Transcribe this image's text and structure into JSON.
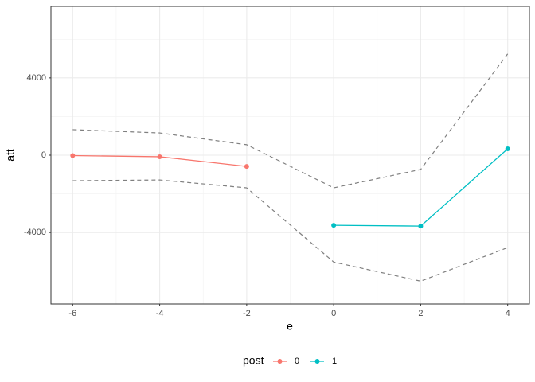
{
  "chart_data": {
    "type": "line",
    "x_label": "e",
    "y_label": "att",
    "x": [
      -6,
      -4,
      -2,
      0,
      2,
      4
    ],
    "series": [
      {
        "name": "0",
        "color": "#f8766d",
        "x": [
          -6,
          -4,
          -2
        ],
        "values": [
          -20,
          -80,
          -580
        ]
      },
      {
        "name": "1",
        "color": "#00bfc4",
        "x": [
          0,
          2,
          4
        ],
        "values": [
          -3630,
          -3670,
          330
        ]
      }
    ],
    "ci_upper": {
      "color": "#7f7f7f",
      "values": [
        1320,
        1150,
        540,
        -1690,
        -740,
        5240
      ]
    },
    "ci_lower": {
      "color": "#7f7f7f",
      "values": [
        -1320,
        -1280,
        -1690,
        -5530,
        -6520,
        -4780
      ]
    },
    "legend_title": "post",
    "legend_position": "bottom",
    "xlim": [
      -6.5,
      4.5
    ],
    "xticks": [
      -6,
      -4,
      -2,
      0,
      2,
      4
    ],
    "minor_xticks": [
      -5,
      -3,
      -1,
      1,
      3
    ],
    "ylim": [
      -7700,
      7700
    ],
    "yticks": [
      -4000,
      0,
      4000
    ],
    "minor_yticks": [
      -6000,
      -2000,
      2000,
      6000
    ],
    "grid": true
  }
}
